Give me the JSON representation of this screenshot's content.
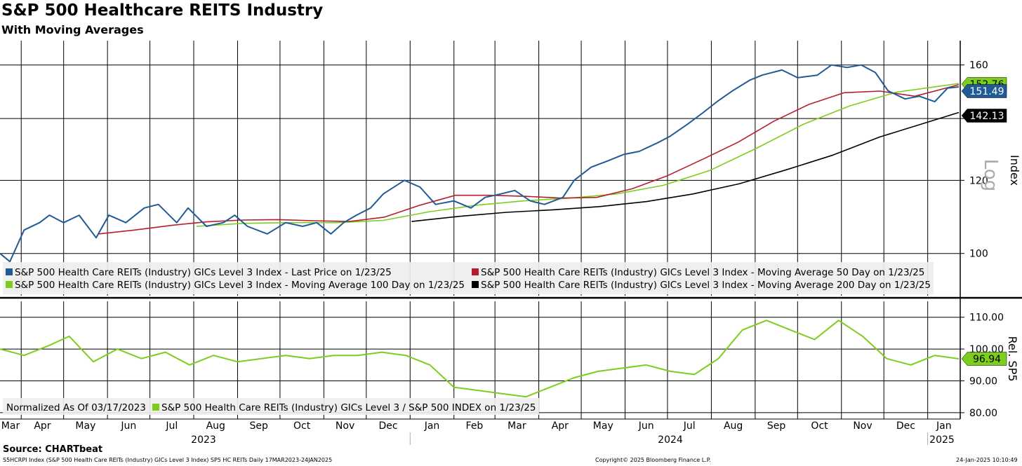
{
  "title": "S&P 500 Healthcare REITS Industry",
  "subtitle": "With Moving Averages",
  "source": "Source: CHARTbeat",
  "footer": {
    "left": "S5HCRPI Index (S&P 500 Health Care REITs (Industry) GICs Level 3 Index) SP5 HC REITs  Daily 17MAR2023-24JAN2025",
    "center": "Copyright© 2025 Bloomberg Finance L.P.",
    "right": "24-Jan-2025 10:10:49"
  },
  "colors": {
    "price": "#1f5b96",
    "ma50": "#b51e2d",
    "ma100": "#7dcd1e",
    "ma200": "#000000",
    "rel": "#7dcd1e"
  },
  "chart_data": [
    {
      "type": "line",
      "name": "upper-panel",
      "ylabel": "Index",
      "scale_label": "Log",
      "yscale": "log",
      "ylim": [
        90,
        170
      ],
      "yticks": [
        100,
        120,
        140,
        160
      ],
      "x_range": [
        "2023-03-17",
        "2025-01-24"
      ],
      "legend": [
        "S&P 500 Health Care REITs (Industry) GICs Level 3 Index - Last Price on 1/23/25",
        "S&P 500 Health Care REITs (Industry) GICs Level 3 Index - Moving Average 50 Day on 1/23/25",
        "S&P 500 Health Care REITs (Industry) GICs Level 3 Index - Moving Average 100 Day on 1/23/25",
        "S&P 500 Health Care REITs (Industry) GICs Level 3 Index - Moving Average 200 Day on 1/23/25"
      ],
      "last_value_labels": [
        {
          "text": "152.76",
          "color": "#7dcd1e"
        },
        {
          "text": "151.49",
          "color": "#1f5b96"
        },
        {
          "text": "142.13",
          "color": "#000000"
        }
      ],
      "series": [
        {
          "name": "Last Price",
          "color": "#1f5b96",
          "x": [
            "2023-03-17",
            "2023-03-24",
            "2023-04-03",
            "2023-04-14",
            "2023-04-21",
            "2023-05-01",
            "2023-05-12",
            "2023-05-24",
            "2023-06-02",
            "2023-06-14",
            "2023-06-27",
            "2023-07-07",
            "2023-07-20",
            "2023-07-28",
            "2023-08-10",
            "2023-08-22",
            "2023-08-30",
            "2023-09-08",
            "2023-09-22",
            "2023-10-05",
            "2023-10-17",
            "2023-10-27",
            "2023-11-06",
            "2023-11-15",
            "2023-11-24",
            "2023-12-04",
            "2023-12-13",
            "2023-12-28",
            "2024-01-08",
            "2024-01-19",
            "2024-02-01",
            "2024-02-13",
            "2024-02-23",
            "2024-03-05",
            "2024-03-15",
            "2024-03-26",
            "2024-04-05",
            "2024-04-18",
            "2024-04-26",
            "2024-05-08",
            "2024-05-20",
            "2024-05-31",
            "2024-06-11",
            "2024-06-25",
            "2024-07-03",
            "2024-07-15",
            "2024-07-26",
            "2024-08-05",
            "2024-08-16",
            "2024-08-28",
            "2024-09-06",
            "2024-09-20",
            "2024-10-01",
            "2024-10-15",
            "2024-10-25",
            "2024-11-05",
            "2024-11-15",
            "2024-11-25",
            "2024-12-04",
            "2024-12-16",
            "2024-12-26",
            "2025-01-06",
            "2025-01-15",
            "2025-01-23"
          ],
          "values": [
            100,
            98,
            106,
            108,
            110,
            108,
            110,
            104,
            110,
            108,
            112,
            113,
            108,
            112,
            107,
            108,
            110,
            107,
            105,
            108,
            107,
            108,
            105,
            108,
            110,
            112,
            116,
            120,
            118,
            113,
            114,
            112,
            115,
            116,
            117,
            114,
            113,
            115,
            120,
            124,
            126,
            128,
            129,
            132,
            134,
            138,
            142,
            146,
            150,
            154,
            156,
            158,
            155,
            156,
            160,
            159,
            160,
            157,
            150,
            147,
            148,
            146,
            151,
            151.49
          ]
        },
        {
          "name": "Moving Average 50 Day",
          "color": "#b51e2d",
          "x": [
            "2023-05-26",
            "2023-06-20",
            "2023-07-17",
            "2023-08-10",
            "2023-09-05",
            "2023-09-30",
            "2023-10-25",
            "2023-11-19",
            "2023-12-14",
            "2024-01-08",
            "2024-02-02",
            "2024-02-27",
            "2024-03-23",
            "2024-04-17",
            "2024-05-12",
            "2024-06-06",
            "2024-07-01",
            "2024-07-26",
            "2024-08-20",
            "2024-09-14",
            "2024-10-09",
            "2024-11-03",
            "2024-11-28",
            "2024-12-23",
            "2025-01-23"
          ],
          "values": [
            105,
            106,
            107.3,
            108.2,
            108.7,
            108.8,
            108.5,
            108.3,
            109.5,
            112.8,
            115.6,
            115.6,
            115.3,
            114.8,
            115,
            117.5,
            121.4,
            126.5,
            132,
            139,
            145,
            149.3,
            149.9,
            148,
            152.3
          ]
        },
        {
          "name": "Moving Average 100 Day",
          "color": "#7dcd1e",
          "x": [
            "2023-08-03",
            "2023-09-05",
            "2023-10-08",
            "2023-11-10",
            "2023-12-13",
            "2024-01-15",
            "2024-02-17",
            "2024-03-21",
            "2024-04-23",
            "2024-05-26",
            "2024-06-28",
            "2024-07-31",
            "2024-09-02",
            "2024-10-05",
            "2024-11-07",
            "2024-12-10",
            "2025-01-23"
          ],
          "values": [
            107,
            107.8,
            108,
            108,
            108.6,
            111,
            112.8,
            114,
            114.8,
            116,
            118.5,
            123,
            130,
            138,
            144.5,
            149.5,
            152.76
          ]
        },
        {
          "name": "Moving Average 200 Day",
          "color": "#000000",
          "x": [
            "2024-01-02",
            "2024-02-05",
            "2024-03-09",
            "2024-04-11",
            "2024-05-14",
            "2024-06-16",
            "2024-07-19",
            "2024-08-21",
            "2024-09-23",
            "2024-10-26",
            "2024-11-28",
            "2025-01-23"
          ],
          "values": [
            108.3,
            109.7,
            110.8,
            111.5,
            112.4,
            113.8,
            116,
            119,
            123.2,
            127.8,
            133.7,
            142.13
          ]
        }
      ]
    },
    {
      "type": "line",
      "name": "lower-panel",
      "ylabel": "Rel. SP5",
      "ylim": [
        78,
        115
      ],
      "yticks": [
        80,
        90,
        100,
        110
      ],
      "ytick_labels": [
        "80.00",
        "90.00",
        "100.00",
        "110.00"
      ],
      "legend_prefix": "Normalized As Of 03/17/2023",
      "legend": [
        "S&P 500 Health Care REITs (Industry) GICs Level 3 / S&P 500 INDEX on 1/23/25"
      ],
      "last_value_labels": [
        {
          "text": "96.94",
          "color": "#7dcd1e"
        }
      ],
      "series": [
        {
          "name": "Relative Value",
          "color": "#7dcd1e",
          "x": [
            "2023-03-17",
            "2023-04-03",
            "2023-04-20",
            "2023-05-05",
            "2023-05-22",
            "2023-06-08",
            "2023-06-25",
            "2023-07-12",
            "2023-07-29",
            "2023-08-15",
            "2023-09-01",
            "2023-09-18",
            "2023-10-05",
            "2023-10-22",
            "2023-11-08",
            "2023-11-25",
            "2023-12-12",
            "2023-12-29",
            "2024-01-15",
            "2024-02-01",
            "2024-02-18",
            "2024-03-06",
            "2024-03-23",
            "2024-04-09",
            "2024-04-26",
            "2024-05-13",
            "2024-05-30",
            "2024-06-16",
            "2024-07-03",
            "2024-07-20",
            "2024-08-06",
            "2024-08-23",
            "2024-09-09",
            "2024-09-26",
            "2024-10-13",
            "2024-10-30",
            "2024-11-16",
            "2024-12-03",
            "2024-12-20",
            "2025-01-06",
            "2025-01-23"
          ],
          "values": [
            100,
            98,
            101,
            104,
            96,
            100,
            97,
            99,
            95,
            98,
            96,
            97,
            98,
            97,
            98,
            98,
            99,
            98,
            95,
            88,
            87,
            86,
            85,
            88,
            91,
            93,
            94,
            95,
            93,
            92,
            97,
            106,
            109,
            106,
            103,
            109,
            104,
            97,
            95,
            98,
            96.94
          ]
        }
      ]
    }
  ],
  "x_axis": {
    "months": [
      "Mar",
      "Apr",
      "May",
      "Jun",
      "Jul",
      "Aug",
      "Sep",
      "Oct",
      "Nov",
      "Dec",
      "Jan",
      "Feb",
      "Mar",
      "Apr",
      "May",
      "Jun",
      "Jul",
      "Aug",
      "Sep",
      "Oct",
      "Nov",
      "Dec",
      "Jan"
    ],
    "years": [
      "2023",
      "2024",
      "2025"
    ]
  }
}
